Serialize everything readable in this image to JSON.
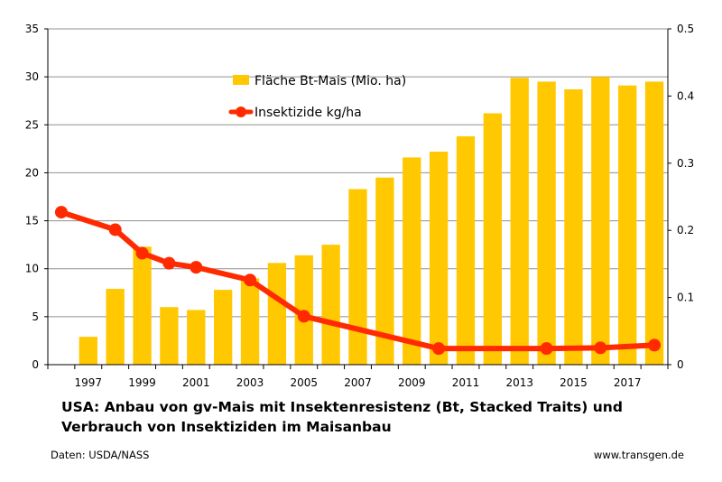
{
  "chart_data": {
    "type": "bar",
    "x": [
      1996,
      1997,
      1998,
      1999,
      2000,
      2001,
      2002,
      2003,
      2004,
      2005,
      2006,
      2007,
      2008,
      2009,
      2010,
      2011,
      2012,
      2013,
      2014,
      2015,
      2016,
      2017,
      2018
    ],
    "x_tick_labels": [
      "1997",
      "1999",
      "2001",
      "2003",
      "2005",
      "2007",
      "2009",
      "2011",
      "2013",
      "2015",
      "2017"
    ],
    "x_tick_years": [
      1997,
      1999,
      2001,
      2003,
      2005,
      2007,
      2009,
      2011,
      2013,
      2015,
      2017
    ],
    "series": [
      {
        "name": "Fläche Bt-Mais (Mio. ha)",
        "type": "bar",
        "axis": "left",
        "color": "#FFC800",
        "values": [
          null,
          2.9,
          7.9,
          12.3,
          6.0,
          5.7,
          7.8,
          9.0,
          10.6,
          11.4,
          12.5,
          18.3,
          19.5,
          21.6,
          22.2,
          23.8,
          26.2,
          29.9,
          29.5,
          28.7,
          30.0,
          29.1,
          29.5
        ]
      },
      {
        "name": "Insektizide kg/ha",
        "type": "line",
        "axis": "right",
        "color": "#FF2A00",
        "points": [
          {
            "x": 1996,
            "y": 0.227
          },
          {
            "x": 1998,
            "y": 0.201
          },
          {
            "x": 1999,
            "y": 0.166
          },
          {
            "x": 2000,
            "y": 0.151
          },
          {
            "x": 2001,
            "y": 0.145
          },
          {
            "x": 2003,
            "y": 0.126
          },
          {
            "x": 2005,
            "y": 0.072
          },
          {
            "x": 2010,
            "y": 0.024
          },
          {
            "x": 2014,
            "y": 0.024
          },
          {
            "x": 2016,
            "y": 0.025
          },
          {
            "x": 2018,
            "y": 0.029
          }
        ]
      }
    ],
    "y_left": {
      "min": 0,
      "max": 35,
      "ticks": [
        0,
        5,
        10,
        15,
        20,
        25,
        30,
        35
      ]
    },
    "y_right": {
      "min": 0,
      "max": 0.5,
      "ticks": [
        "0",
        "0.1",
        "0.2",
        "0.3",
        "0.4",
        "0.5"
      ]
    },
    "grid": true,
    "legend": "top-center",
    "gridline_color": "#909090"
  },
  "caption": {
    "line1": "USA: Anbau von gv-Mais mit Insektenresistenz (Bt, Stacked Traits) und",
    "line2": "Verbrauch von Insektiziden im Maisanbau"
  },
  "source": "Daten: USDA/NASS",
  "website": "www.transgen.de"
}
